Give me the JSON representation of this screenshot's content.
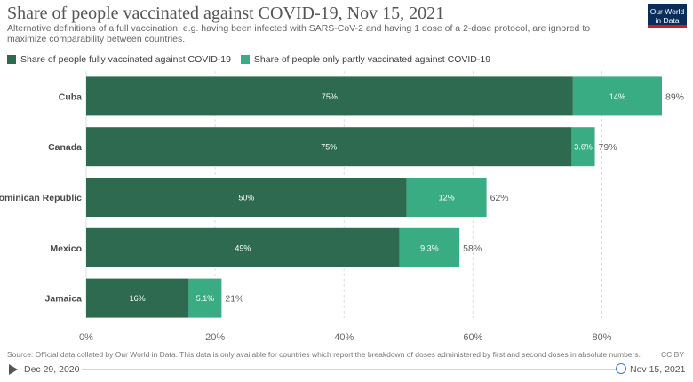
{
  "header": {
    "title": "Share of people vaccinated against COVID-19, Nov 15, 2021",
    "subtitle": "Alternative definitions of a full vaccination, e.g. having been infected with SARS-CoV-2 and having 1 dose of a 2-dose protocol, are ignored to maximize comparability between countries.",
    "logo_line1": "Our World",
    "logo_line2": "in Data"
  },
  "legend": {
    "full_label": "Share of people fully vaccinated against COVID-19",
    "partial_label": "Share of people only partly vaccinated against COVID-19"
  },
  "colors": {
    "full": "#2d6a4f",
    "partial": "#3aac84",
    "grid": "#dddddd",
    "text": "#5b5b5b"
  },
  "chart_data": {
    "type": "bar",
    "orientation": "horizontal",
    "stacked": true,
    "categories": [
      "Cuba",
      "Canada",
      "Dominican Republic",
      "Mexico",
      "Jamaica"
    ],
    "series": [
      {
        "name": "Share of people fully vaccinated against COVID-19",
        "values": [
          75.5,
          75.3,
          49.7,
          48.6,
          15.9
        ],
        "labels": [
          "75%",
          "75%",
          "50%",
          "49%",
          "16%"
        ]
      },
      {
        "name": "Share of people only partly vaccinated against COVID-19",
        "values": [
          13.8,
          3.6,
          12.4,
          9.3,
          5.1
        ],
        "labels": [
          "14%",
          "3.6%",
          "12%",
          "9.3%",
          "5.1%"
        ]
      }
    ],
    "totals": [
      "89%",
      "79%",
      "62%",
      "58%",
      "21%"
    ],
    "xlim": [
      0,
      89.3
    ],
    "xticks": [
      0,
      20,
      40,
      60,
      80
    ],
    "xtick_labels": [
      "0%",
      "20%",
      "40%",
      "60%",
      "80%"
    ],
    "grid": true,
    "legend_position": "top-left"
  },
  "footer": {
    "source": "Source: Official data collated by Our World in Data. This data is only available for countries which report the breakdown of doses administered by first and second doses in absolute numbers.",
    "license": "CC BY"
  },
  "timeline": {
    "start_date": "Dec 29, 2020",
    "end_date": "Nov 15, 2021",
    "position": 1.0
  }
}
